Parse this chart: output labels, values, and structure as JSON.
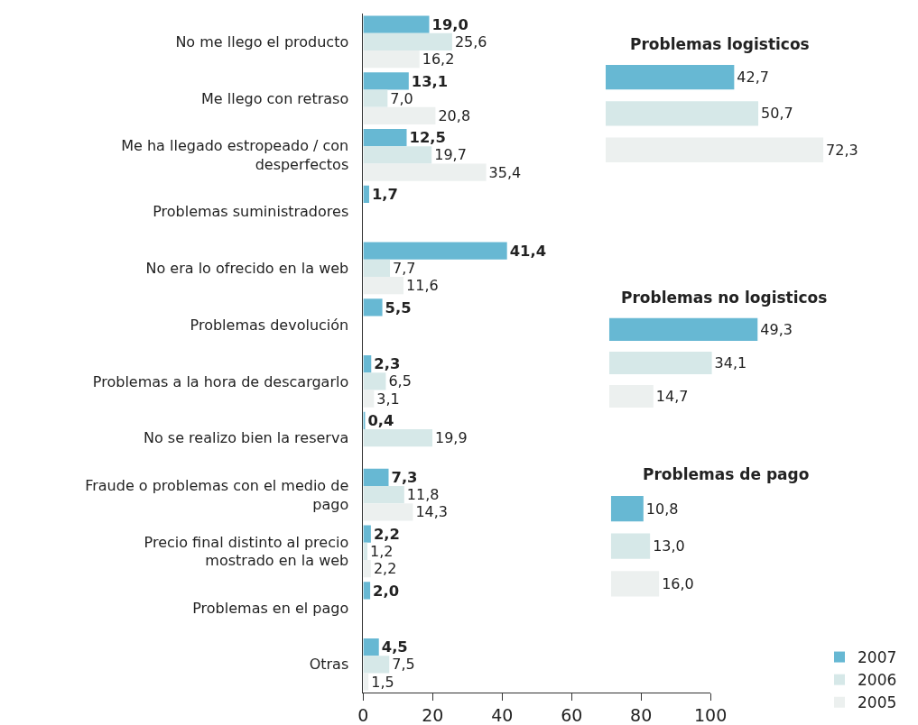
{
  "chart_data": [
    {
      "type": "bar",
      "orientation": "horizontal",
      "categories": [
        "No me llego el producto",
        "Me llego con retraso",
        "Me ha llegado estropeado / con desperfectos",
        "Problemas suministradores",
        "No era lo ofrecido en la web",
        "Problemas devolución",
        "Problemas a la hora de descargarlo",
        "No se realizo bien la reserva",
        "Fraude o problemas con el medio de pago",
        "Precio final distinto al precio mostrado en la web",
        "Problemas en el pago",
        "Otras"
      ],
      "series": [
        {
          "name": "2007",
          "color": "#67b8d3",
          "values": [
            19.0,
            13.1,
            12.5,
            1.7,
            41.4,
            5.5,
            2.3,
            0.4,
            7.3,
            2.2,
            2.0,
            4.5
          ],
          "value_labels": [
            "19,0",
            "13,1",
            "12,5",
            "1,7",
            "41,4",
            "5,5",
            "2,3",
            "0,4",
            "7,3",
            "2,2",
            "2,0",
            "4,5"
          ]
        },
        {
          "name": "2006",
          "color": "#d6e8e8",
          "values": [
            25.6,
            7.0,
            19.7,
            null,
            7.7,
            null,
            6.5,
            19.9,
            11.8,
            1.2,
            null,
            7.5
          ],
          "value_labels": [
            "25,6",
            "7,0",
            "19,7",
            null,
            "7,7",
            null,
            "6,5",
            "19,9",
            "11,8",
            "1,2",
            null,
            "7,5"
          ]
        },
        {
          "name": "2005",
          "color": "#ecf0ef",
          "values": [
            16.2,
            20.8,
            35.4,
            null,
            11.6,
            null,
            3.1,
            null,
            14.3,
            2.2,
            null,
            1.5
          ],
          "value_labels": [
            "16,2",
            "20,8",
            "35,4",
            null,
            "11,6",
            null,
            "3,1",
            null,
            "14,3",
            "2,2",
            null,
            "1,5"
          ]
        }
      ],
      "xlim": [
        0,
        100
      ],
      "xticks": [
        0,
        20,
        40,
        60,
        80,
        100
      ],
      "legend": "bottom right"
    },
    {
      "type": "bar",
      "orientation": "horizontal",
      "title": "Problemas logisticos",
      "categories": [
        null,
        null,
        null
      ],
      "values": [
        42.7,
        50.7,
        72.3
      ],
      "colors": [
        "#67b8d3",
        "#d6e8e8",
        "#ecf0ef"
      ],
      "value_labels": [
        "42,7",
        "50,7",
        "72,3"
      ],
      "tick_labels": false
    },
    {
      "type": "bar",
      "orientation": "horizontal",
      "title": "Problemas no logisticos",
      "categories": [
        null,
        null,
        null
      ],
      "values": [
        49.3,
        34.1,
        14.7
      ],
      "colors": [
        "#67b8d3",
        "#d6e8e8",
        "#ecf0ef"
      ],
      "value_labels": [
        "49,3",
        "34,1",
        "14,7"
      ],
      "tick_labels": false
    },
    {
      "type": "bar",
      "orientation": "horizontal",
      "title": "Problemas de pago",
      "categories": [
        null,
        null,
        null
      ],
      "values": [
        10.8,
        13.0,
        16.0
      ],
      "colors": [
        "#67b8d3",
        "#d6e8e8",
        "#ecf0ef"
      ],
      "value_labels": [
        "10,8",
        "13,0",
        "16,0"
      ],
      "tick_labels": false
    }
  ]
}
